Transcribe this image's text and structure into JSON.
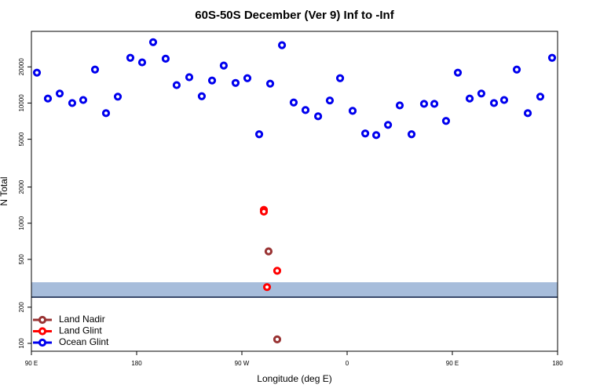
{
  "chart_data": {
    "type": "scatter",
    "title": "60S-50S December (Ver 9)   Inf to -Inf",
    "x_label": "Longitude (deg E)",
    "y_label": "N Total",
    "log_y": true,
    "legend": "bottom left",
    "xlim": [
      90,
      540
    ],
    "xticks": [
      {
        "value": 90,
        "label": "90 E"
      },
      180,
      {
        "value": 270,
        "label": "90 W"
      },
      {
        "value": 360,
        "label": "0"
      },
      {
        "value": 450,
        "label": "90 E"
      },
      {
        "value": 540,
        "label": "180"
      }
    ],
    "ylim": [
      86,
      39500
    ],
    "yticks": [
      100,
      200,
      500,
      1000,
      2000,
      5000,
      10000,
      20000
    ],
    "series": [
      {
        "name": "Land Nadir",
        "color": "#993333",
        "x": [
          292.8,
          300.2
        ],
        "values": [
          583,
          108
        ]
      },
      {
        "name": "Land Glint",
        "color": "#ff0000",
        "x": [
          288.8,
          288.8,
          300.2,
          291.5
        ],
        "values": [
          1290,
          1250,
          402,
          294
        ]
      },
      {
        "name": "Ocean Glint",
        "color": "#0000ee",
        "x": [
          94.7,
          104.1,
          114.2,
          124.9,
          134.3,
          144.4,
          153.8,
          163.9,
          174.6,
          184.7,
          194.1,
          204.8,
          214.2,
          225.0,
          235.7,
          244.5,
          254.5,
          264.6,
          274.7,
          284.8,
          294.2,
          304.3,
          314.3,
          324.4,
          335.2,
          345.2,
          354.0,
          364.7,
          375.5,
          384.9,
          395.0,
          405.0,
          415.1,
          425.8,
          434.6,
          444.6,
          454.7,
          464.8,
          474.8,
          485.6,
          494.3,
          505.1,
          514.5,
          525.2,
          535.3
        ],
        "values": [
          17900,
          10900,
          12000,
          10000,
          10600,
          19000,
          8240,
          11300,
          23800,
          21800,
          32100,
          23400,
          14100,
          16400,
          11400,
          15400,
          20500,
          14700,
          16100,
          5500,
          14500,
          30300,
          10100,
          8740,
          7760,
          10500,
          16100,
          8610,
          5580,
          5410,
          6580,
          9560,
          5500,
          9850,
          9850,
          7100,
          17900,
          10900,
          12000,
          10000,
          10600,
          19000,
          8240,
          11300,
          23800
        ]
      }
    ]
  }
}
